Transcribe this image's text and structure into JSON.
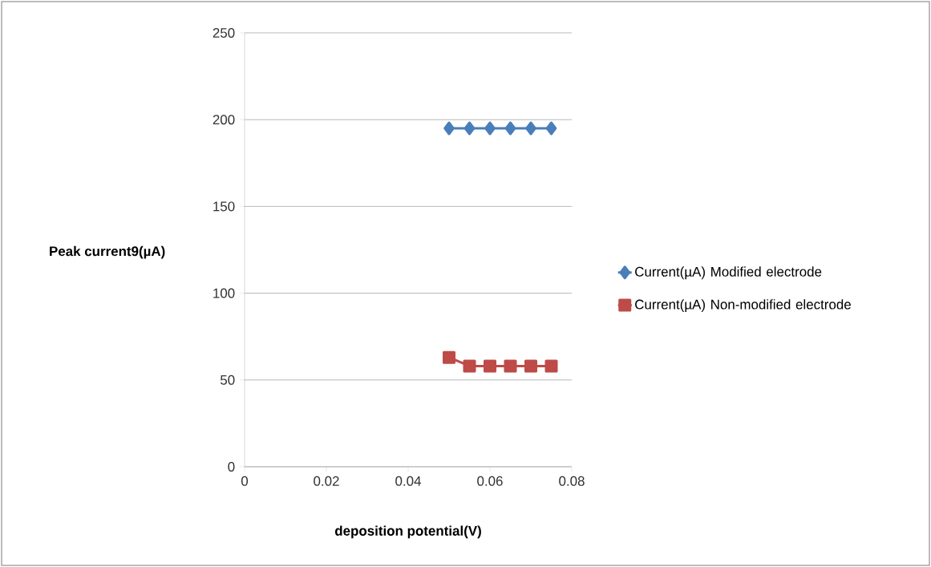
{
  "chart_data": {
    "type": "line",
    "xlabel": "deposition potential(V)",
    "ylabel": "Peak current9(µA)",
    "x": [
      0.05,
      0.055,
      0.06,
      0.065,
      0.07,
      0.075
    ],
    "series": [
      {
        "name": "Current(µA) Modified electrode",
        "color": "#4a7ebb",
        "marker": "diamond",
        "values": [
          195,
          195,
          195,
          195,
          195,
          195
        ]
      },
      {
        "name": "Current(µA) Non-modified electrode",
        "color": "#be4b48",
        "marker": "square",
        "values": [
          63,
          58,
          58,
          58,
          58,
          58
        ]
      }
    ],
    "xlim": [
      0,
      0.08
    ],
    "xticks": [
      0,
      0.02,
      0.04,
      0.06,
      0.08
    ],
    "ylim": [
      0,
      250
    ],
    "yticks": [
      0,
      50,
      100,
      150,
      200,
      250
    ],
    "grid": "y",
    "legend": "right",
    "line_style": "solid"
  }
}
